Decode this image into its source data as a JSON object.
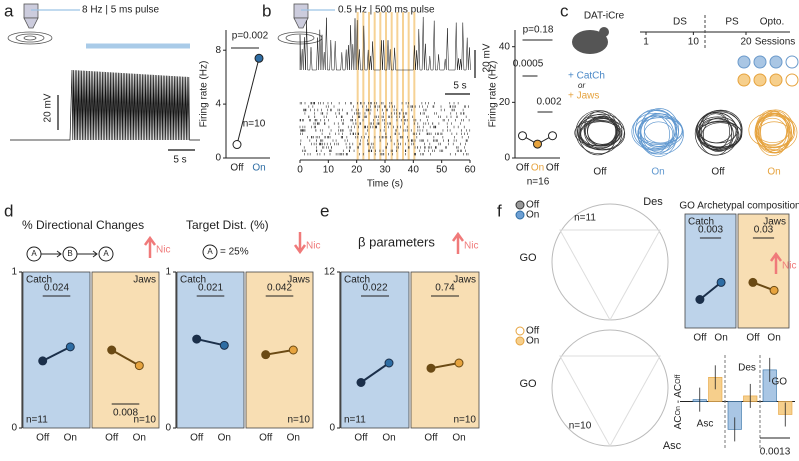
{
  "panels": {
    "a": {
      "label": "a",
      "stim": "8 Hz | 5 ms pulse",
      "scale_v": "20 mV",
      "scale_t": "5 s",
      "ylabel": "Firing rate (Hz)",
      "yticks": [
        0,
        4,
        8
      ],
      "ylim": [
        0,
        9.5
      ],
      "categories": [
        "Off",
        "On"
      ],
      "means": [
        1,
        7.4
      ],
      "n": "n=10",
      "p": "p=0.002"
    },
    "b": {
      "label": "b",
      "stim": "0.5 Hz | 500 ms pulse",
      "scale_v": "20 mV",
      "scale_t": "5 s",
      "xlabel": "Time (s)",
      "xticks": [
        0,
        10,
        20,
        30,
        40,
        50,
        60
      ],
      "xlim": [
        0,
        60
      ],
      "ylabel": "Firing rate (Hz)",
      "yticks": [
        0,
        20,
        40
      ],
      "ylim": [
        0,
        46
      ],
      "categories": [
        "Off",
        "On",
        "Off"
      ],
      "means": [
        8,
        5,
        8
      ],
      "p_all": "p=0.18",
      "p_first": "0.0005",
      "p_second": "0.002",
      "n": "n=16"
    },
    "c": {
      "label": "c",
      "mouse": "DAT-iCre",
      "catch": "+ CatCh",
      "or": "or",
      "jaws": "+ Jaws",
      "phases": [
        "DS",
        "PS",
        "Opto."
      ],
      "session_ticks": [
        1,
        10,
        20
      ],
      "sessions": "Sessions",
      "conditions": [
        "Off",
        "On",
        "Off",
        "On"
      ]
    },
    "d": {
      "label": "d",
      "nic": "Nic",
      "charts": [
        {
          "title": "% Directional Changes",
          "arrow": "up",
          "yticks": [
            0,
            1
          ],
          "ylim": [
            0,
            1
          ],
          "categories": [
            "Off",
            "On"
          ],
          "groups": [
            {
              "name": "Catch",
              "n": "n=11",
              "means": [
                0.43,
                0.52
              ],
              "p": "0.024",
              "p_position": "top"
            },
            {
              "name": "Jaws",
              "n": "n=10",
              "means": [
                0.5,
                0.4
              ],
              "p": "0.008",
              "p_position": "bottom"
            }
          ]
        },
        {
          "title": "Target Dist. (%)",
          "subtitle": "= 25%",
          "symbol": "A",
          "arrow": "down",
          "yticks": [
            0,
            1
          ],
          "ylim": [
            0,
            1
          ],
          "categories": [
            "Off",
            "On"
          ],
          "groups": [
            {
              "name": "Catch",
              "means": [
                0.57,
                0.53
              ],
              "p": "0.021",
              "p_position": "top"
            },
            {
              "name": "Jaws",
              "n": "n=10",
              "means": [
                0.47,
                0.5
              ],
              "p": "0.042",
              "p_position": "top"
            }
          ]
        }
      ]
    },
    "e": {
      "label": "e",
      "nic": "Nic",
      "charts": [
        {
          "title": "β parameters",
          "arrow": "up",
          "yticks": [
            0,
            12
          ],
          "ylim": [
            0,
            12
          ],
          "categories": [
            "Off",
            "On"
          ],
          "groups": [
            {
              "name": "Catch",
              "n": "n=11",
              "means": [
                3.5,
                5.0
              ],
              "p": "0.022",
              "p_position": "top"
            },
            {
              "name": "Jaws",
              "n": "n=10",
              "means": [
                4.6,
                5.0
              ],
              "p": "0.74",
              "p_position": "top"
            }
          ]
        }
      ]
    },
    "f": {
      "label": "f",
      "nic": "Nic",
      "legend_catch": [
        "Off",
        "On"
      ],
      "legend_jaws": [
        "Off",
        "On"
      ],
      "des": "Des",
      "go": [
        "GO",
        "GO"
      ],
      "asc": "Asc",
      "n_catch": "n=11",
      "n_jaws": "n=10",
      "charts": [
        {
          "title": "GO Archetypal composition",
          "arrow": "up",
          "categories": [
            "Off",
            "On"
          ],
          "ylim": [
            0,
            1
          ],
          "groups": [
            {
              "name": "Catch",
              "means": [
                0.25,
                0.4
              ],
              "p": "0.003",
              "p_position": "top"
            },
            {
              "name": "Jaws",
              "means": [
                0.4,
                0.33
              ],
              "p": "0.03",
              "p_position": "top"
            }
          ]
        }
      ],
      "bars": {
        "categories": [
          "Asc",
          "Des",
          "GO"
        ],
        "ylim": [
          -0.25,
          0.25
        ],
        "ylabel": [
          "AC",
          "On",
          " - AC",
          "Off"
        ],
        "series": [
          {
            "name": "Catch",
            "color": "#a9c6e4",
            "values": [
              0.01,
              -0.15,
              0.17
            ]
          },
          {
            "name": "Jaws",
            "color": "#f6cf8c",
            "values": [
              0.13,
              0.03,
              -0.07
            ]
          }
        ],
        "p": "0.0013"
      }
    }
  }
}
